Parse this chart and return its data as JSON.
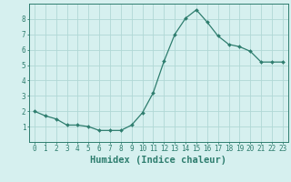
{
  "x": [
    0,
    1,
    2,
    3,
    4,
    5,
    6,
    7,
    8,
    9,
    10,
    11,
    12,
    13,
    14,
    15,
    16,
    17,
    18,
    19,
    20,
    21,
    22,
    23
  ],
  "y": [
    2.0,
    1.7,
    1.5,
    1.1,
    1.1,
    1.0,
    0.75,
    0.75,
    0.75,
    1.1,
    1.9,
    3.2,
    5.25,
    7.0,
    8.05,
    8.6,
    7.8,
    6.9,
    6.35,
    6.2,
    5.9,
    5.2,
    5.2,
    5.2
  ],
  "line_color": "#2e7d6e",
  "marker": "D",
  "marker_size": 2,
  "bg_color": "#d6f0ef",
  "grid_color": "#b0d8d5",
  "xlabel": "Humidex (Indice chaleur)",
  "xlim": [
    -0.5,
    23.5
  ],
  "ylim": [
    0,
    9
  ],
  "yticks": [
    1,
    2,
    3,
    4,
    5,
    6,
    7,
    8
  ],
  "xticks": [
    0,
    1,
    2,
    3,
    4,
    5,
    6,
    7,
    8,
    9,
    10,
    11,
    12,
    13,
    14,
    15,
    16,
    17,
    18,
    19,
    20,
    21,
    22,
    23
  ],
  "tick_color": "#2e7d6e",
  "label_fontsize": 5.5,
  "xlabel_fontsize": 7.5
}
